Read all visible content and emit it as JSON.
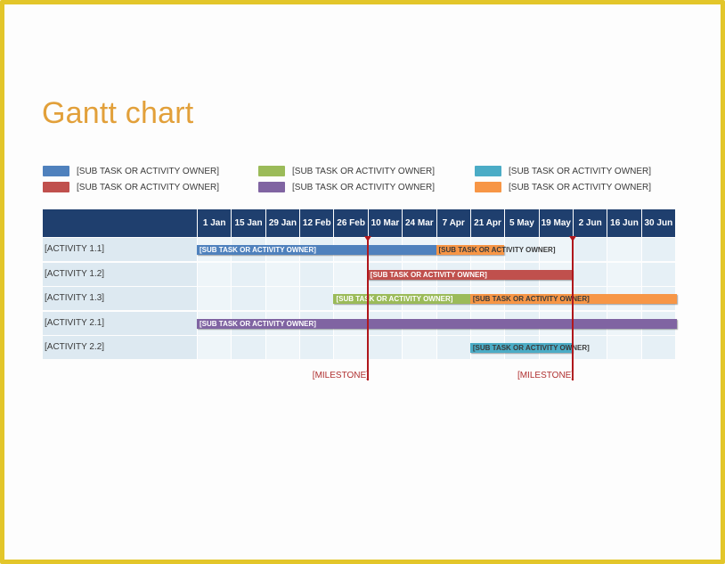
{
  "title": "Gantt chart",
  "legend": [
    {
      "label": "[SUB TASK OR ACTIVITY OWNER]",
      "color": "#4f81bd"
    },
    {
      "label": "[SUB TASK OR ACTIVITY OWNER]",
      "color": "#c0504d"
    },
    {
      "label": "[SUB TASK OR ACTIVITY OWNER]",
      "color": "#9bbb59"
    },
    {
      "label": "[SUB TASK OR ACTIVITY OWNER]",
      "color": "#8064a2"
    },
    {
      "label": "[SUB TASK OR ACTIVITY OWNER]",
      "color": "#4bacc6"
    },
    {
      "label": "[SUB TASK OR ACTIVITY OWNER]",
      "color": "#f79646"
    }
  ],
  "chart_data": {
    "type": "gantt",
    "timeline": [
      "1 Jan",
      "15 Jan",
      "29 Jan",
      "12 Feb",
      "26 Feb",
      "10 Mar",
      "24 Mar",
      "7 Apr",
      "21 Apr",
      "5 May",
      "19 May",
      "2 Jun",
      "16 Jun",
      "30 Jun"
    ],
    "activities": [
      {
        "label": "[ACTIVITY 1.1]",
        "tasks": [
          {
            "label": "[SUB TASK OR ACTIVITY OWNER]",
            "start": "1 Jan",
            "end": "7 Apr",
            "color": "#4f81bd"
          },
          {
            "label": "[SUB TASK OR ACTIVITY OWNER]",
            "start": "7 Apr",
            "end": "5 May",
            "color": "#f79646"
          }
        ]
      },
      {
        "label": "[ACTIVITY 1.2]",
        "tasks": [
          {
            "label": "[SUB TASK OR ACTIVITY OWNER]",
            "start": "10 Mar",
            "end": "2 Jun",
            "color": "#c0504d"
          }
        ]
      },
      {
        "label": "[ACTIVITY 1.3]",
        "tasks": [
          {
            "label": "[SUB TASK OR ACTIVITY OWNER]",
            "start": "26 Feb",
            "end": "21 Apr",
            "color": "#9bbb59"
          },
          {
            "label": "[SUB TASK OR ACTIVITY OWNER]",
            "start": "21 Apr",
            "end": "end",
            "color": "#f79646"
          }
        ]
      },
      {
        "label": "[ACTIVITY 2.1]",
        "tasks": [
          {
            "label": "[SUB TASK OR ACTIVITY OWNER]",
            "start": "1 Jan",
            "end": "end",
            "color": "#8064a2"
          }
        ]
      },
      {
        "label": "[ACTIVITY 2.2]",
        "tasks": [
          {
            "label": "[SUB TASK OR ACTIVITY OWNER]",
            "start": "21 Apr",
            "end": "2 Jun",
            "color": "#4bacc6"
          }
        ]
      }
    ],
    "milestones": [
      {
        "label": "[MILESTONE]",
        "date": "10 Mar"
      },
      {
        "label": "[MILESTONE]",
        "date": "2 Jun"
      }
    ]
  },
  "colors": {
    "header": "#1f3f6e",
    "row_fill": "#dde9f1",
    "cell_fill": "#eef5f9",
    "milestone": "#b0171c",
    "title": "#e2a03a",
    "frame": "#e3c62a"
  }
}
